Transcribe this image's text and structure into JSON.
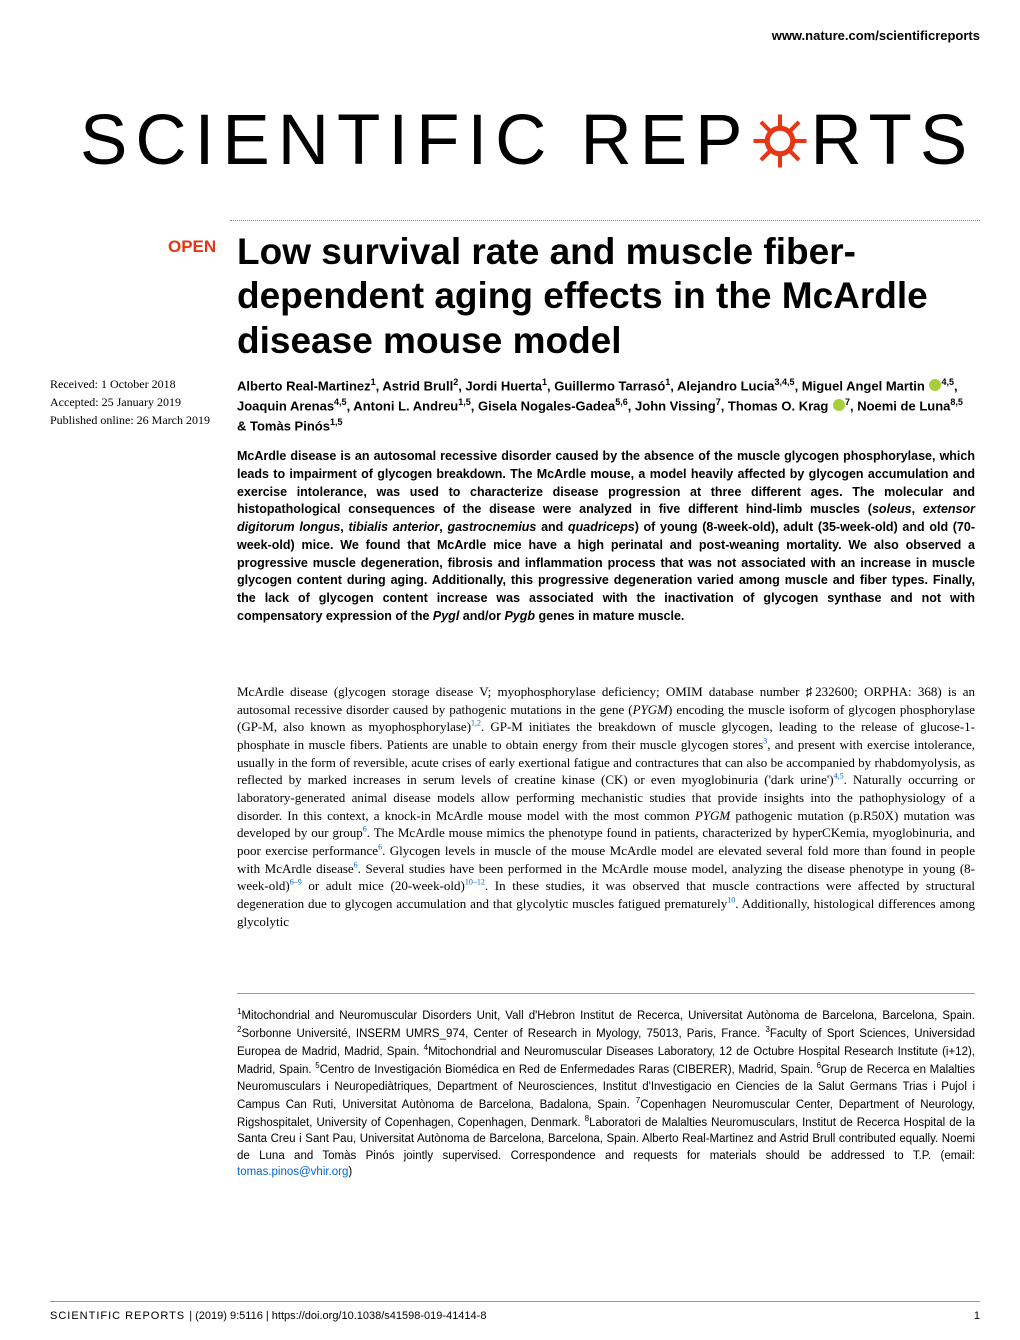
{
  "url": "www.nature.com/scientificreports",
  "logo_left": "SCIENTIFIC",
  "logo_right": "RTS",
  "journal_label": "OPEN",
  "title": "Low survival rate and muscle fiber-dependent aging effects in the McArdle disease mouse model",
  "dates": {
    "received": "Received: 1 October 2018",
    "accepted": "Accepted: 25 January 2019",
    "published": "Published online: 26 March 2019"
  },
  "authors_html": "Alberto Real-Martinez<sup>1</sup>, Astrid Brull<sup>2</sup>, Jordi Huerta<sup>1</sup>, Guillermo Tarrasó<sup>1</sup>, Alejandro Lucia<sup>3,4,5</sup>, Miguel Angel Martin <span class='orcid'></span><sup>4,5</sup>, Joaquin Arenas<sup>4,5</sup>, Antoni L. Andreu<sup>1,5</sup>, Gisela Nogales-Gadea<sup>5,6</sup>, John Vissing<sup>7</sup>, Thomas O. Krag <span class='orcid'></span><sup>7</sup>, Noemi de Luna<sup>8,5</sup> & Tomàs Pinós<sup>1,5</sup>",
  "abstract_html": "McArdle disease is an autosomal recessive disorder caused by the absence of the muscle glycogen phosphorylase, which leads to impairment of glycogen breakdown. The McArdle mouse, a model heavily affected by glycogen accumulation and exercise intolerance, was used to characterize disease progression at three different ages. The molecular and histopathological consequences of the disease were analyzed in five different hind-limb muscles (<em>soleus</em>, <em>extensor digitorum longus</em>, <em>tibialis anterior</em>, <em>gastrocnemius</em> and <em>quadriceps</em>) of young (8-week-old), adult (35-week-old) and old (70-week-old) mice. We found that McArdle mice have a high perinatal and post-weaning mortality. We also observed a progressive muscle degeneration, fibrosis and inflammation process that was not associated with an increase in muscle glycogen content during aging. Additionally, this progressive degeneration varied among muscle and fiber types. Finally, the lack of glycogen content increase was associated with the inactivation of glycogen synthase and not with compensatory expression of the <em>Pygl</em> and/or <em>Pygb</em> genes in mature muscle.",
  "body_html": "McArdle disease (glycogen storage disease V; myophosphorylase deficiency; OMIM database number ♯232600; ORPHA: 368) is an autosomal recessive disorder caused by pathogenic mutations in the gene (<em>PYGM</em>) encoding the muscle isoform of glycogen phosphorylase (GP-M, also known as myophosphorylase)<span class='ref'>1,2</span>. GP-M initiates the breakdown of muscle glycogen, leading to the release of glucose-1-phosphate in muscle fibers. Patients are unable to obtain energy from their muscle glycogen stores<span class='ref'>3</span>, and present with exercise intolerance, usually in the form of reversible, acute crises of early exertional fatigue and contractures that can also be accompanied by rhabdomyolysis, as reflected by marked increases in serum levels of creatine kinase (CK) or even myoglobinuria ('dark urine')<span class='ref'>4,5</span>. Naturally occurring or laboratory-generated animal disease models allow performing mechanistic studies that provide insights into the pathophysiology of a disorder. In this context, a knock-in McArdle mouse model with the most common <em>PYGM</em> pathogenic mutation (p.R50X) mutation was developed by our group<span class='ref'>6</span>. The McArdle mouse mimics the phenotype found in patients, characterized by hyperCKemia, myoglobinuria, and poor exercise performance<span class='ref'>6</span>. Glycogen levels in muscle of the mouse McArdle model are elevated several fold more than found in people with McArdle disease<span class='ref'>6</span>. Several studies have been performed in the McArdle mouse model, analyzing the disease phenotype in young (8-week-old)<span class='ref'>6–9</span> or adult mice (20-week-old)<span class='ref'>10–12</span>. In these studies, it was observed that muscle contractions were affected by structural degeneration due to glycogen accumulation and that glycolytic muscles fatigued prematurely<span class='ref'>10</span>. Additionally, histological differences among glycolytic",
  "affiliations_html": "<sup>1</sup>Mitochondrial and Neuromuscular Disorders Unit, Vall d'Hebron Institut de Recerca, Universitat Autònoma de Barcelona, Barcelona, Spain. <sup>2</sup>Sorbonne Université, INSERM UMRS_974, Center of Research in Myology, 75013, Paris, France. <sup>3</sup>Faculty of Sport Sciences, Universidad Europea de Madrid, Madrid, Spain. <sup>4</sup>Mitochondrial and Neuromuscular Diseases Laboratory, 12 de Octubre Hospital Research Institute (i+12), Madrid, Spain. <sup>5</sup>Centro de Investigación Biomédica en Red de Enfermedades Raras (CIBERER), Madrid, Spain. <sup>6</sup>Grup de Recerca en Malalties Neuromusculars i Neuropediàtriques, Department of Neurosciences, Institut d'Investigacio en Ciencies de la Salut Germans Trias i Pujol i Campus Can Ruti, Universitat Autònoma de Barcelona, Badalona, Spain. <sup>7</sup>Copenhagen Neuromuscular Center, Department of Neurology, Rigshospitalet, University of Copenhagen, Copenhagen, Denmark. <sup>8</sup>Laboratori de Malalties Neuromusculars, Institut de Recerca Hospital de la Santa Creu i Sant Pau, Universitat Autònoma de Barcelona, Barcelona, Spain. Alberto Real-Martinez and Astrid Brull contributed equally. Noemi de Luna and Tomàs Pinós jointly supervised. Correspondence and requests for materials should be addressed to T.P. (email: <span class='email'>tomas.pinos@vhir.org</span>)",
  "footer": {
    "journal": "SCIENTIFIC REPORTS",
    "citation": "| (2019) 9:5116 | https://doi.org/10.1038/s41598-019-41414-8",
    "page": "1"
  },
  "colors": {
    "accent": "#e63614",
    "link": "#0066cc",
    "orcid": "#a6ce39"
  }
}
